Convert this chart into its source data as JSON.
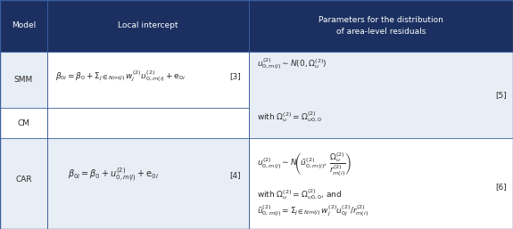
{
  "header_bg": "#1b3060",
  "header_text_color": "#ffffff",
  "row_bg_light": "#e8eef5",
  "row_bg_white": "#ffffff",
  "cell_text_color": "#2a2a2a",
  "border_color": "#3a5fa0",
  "c0": 0.0,
  "c1": 0.092,
  "c2": 0.485,
  "c3": 1.0,
  "r0": 1.0,
  "r1": 0.775,
  "r2": 0.53,
  "r3": 0.395,
  "r4": 0.0,
  "col1_label": "Model",
  "col2_label": "Local intercept",
  "col3_label": "Parameters for the distribution\nof area-level residuals"
}
